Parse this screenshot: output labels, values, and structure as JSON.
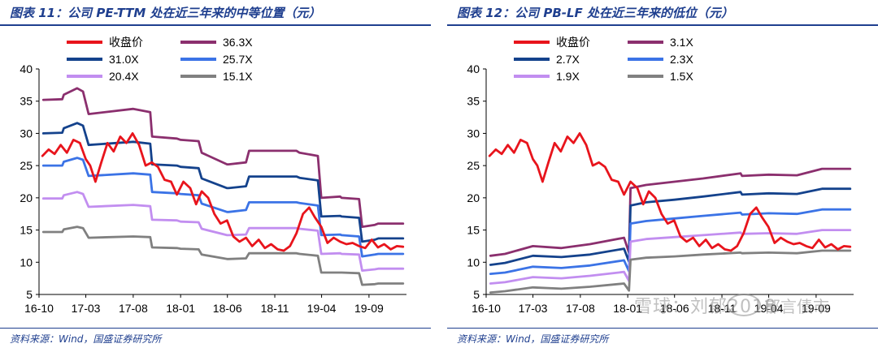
{
  "panels": [
    {
      "title": "图表 11：公司 PE-TTM 处在近三年来的中等位置（元）",
      "source": "资料来源：Wind，国盛证券研究所"
    },
    {
      "title": "图表 12：公司 PB-LF 处在近三年来的低位（元）",
      "source": "资料来源：Wind，国盛证券研究所"
    }
  ],
  "watermark": {
    "line1": "郁言债市",
    "line2": "雪球：刘郁2018"
  },
  "chart_data": [
    {
      "type": "line",
      "ylim": [
        5,
        40
      ],
      "yticks": [
        5,
        10,
        15,
        20,
        25,
        30,
        35,
        40
      ],
      "xlim": [
        "2016-10-01",
        "2019-12-31"
      ],
      "xticks": [
        "16-10",
        "17-03",
        "17-08",
        "18-01",
        "18-06",
        "18-11",
        "19-04",
        "19-09"
      ],
      "grid": false,
      "legend": "top-left",
      "series": [
        {
          "name": "收盘价",
          "color": "#e8141c",
          "width": 2.8,
          "x": [
            "2016-10-12",
            "2016-11-01",
            "2016-11-20",
            "2016-12-10",
            "2016-12-30",
            "2017-01-20",
            "2017-02-10",
            "2017-03-01",
            "2017-03-15",
            "2017-04-01",
            "2017-04-20",
            "2017-05-10",
            "2017-05-30",
            "2017-06-20",
            "2017-07-10",
            "2017-07-30",
            "2017-08-20",
            "2017-09-10",
            "2017-09-30",
            "2017-10-20",
            "2017-11-10",
            "2017-12-01",
            "2017-12-20",
            "2018-01-10",
            "2018-02-01",
            "2018-02-20",
            "2018-03-10",
            "2018-03-31",
            "2018-04-20",
            "2018-05-10",
            "2018-05-31",
            "2018-06-20",
            "2018-07-10",
            "2018-07-31",
            "2018-08-20",
            "2018-09-10",
            "2018-09-30",
            "2018-10-20",
            "2018-11-10",
            "2018-11-30",
            "2018-12-20",
            "2019-01-10",
            "2019-01-31",
            "2019-02-20",
            "2019-03-10",
            "2019-03-31",
            "2019-04-20",
            "2019-05-10",
            "2019-05-31",
            "2019-06-20",
            "2019-07-10",
            "2019-07-31",
            "2019-08-20",
            "2019-09-10",
            "2019-09-30",
            "2019-10-20",
            "2019-11-10",
            "2019-11-30",
            "2019-12-20"
          ],
          "values": [
            26.5,
            27.5,
            26.8,
            28.2,
            27.0,
            29.0,
            28.5,
            26.0,
            25.0,
            22.5,
            25.5,
            28.5,
            27.2,
            29.5,
            28.5,
            30.0,
            28.2,
            25.0,
            25.5,
            24.8,
            22.8,
            22.5,
            20.5,
            22.5,
            21.5,
            19.0,
            21.0,
            20.0,
            17.5,
            16.0,
            16.5,
            14.0,
            13.2,
            13.8,
            12.5,
            13.5,
            12.2,
            12.8,
            12.0,
            11.8,
            12.5,
            14.5,
            17.5,
            18.5,
            17.0,
            15.5,
            13.0,
            13.8,
            13.2,
            12.8,
            13.0,
            12.5,
            12.2,
            13.5,
            12.3,
            12.8,
            12.0,
            12.5,
            12.4
          ]
        },
        {
          "name": "36.3X",
          "color": "#8b2f6e",
          "width": 2.8,
          "x": [
            "2016-10-15",
            "2016-12-15",
            "2016-12-20",
            "2017-02-01",
            "2017-02-20",
            "2017-03-10",
            "2017-08-01",
            "2017-09-25",
            "2017-10-01",
            "2017-12-20",
            "2018-01-01",
            "2018-02-28",
            "2018-03-10",
            "2018-05-31",
            "2018-06-05",
            "2018-07-31",
            "2018-08-10",
            "2019-01-10",
            "2019-01-20",
            "2019-03-20",
            "2019-03-31",
            "2019-05-31",
            "2019-06-05",
            "2019-07-31",
            "2019-08-10",
            "2019-09-20",
            "2019-10-01",
            "2019-12-20"
          ],
          "values": [
            35.2,
            35.3,
            36.0,
            37.0,
            36.5,
            33.0,
            33.8,
            33.3,
            29.5,
            29.2,
            29.0,
            28.8,
            27.0,
            25.2,
            25.2,
            25.5,
            27.3,
            27.3,
            27.0,
            26.5,
            20.0,
            20.2,
            20.0,
            19.8,
            15.5,
            15.8,
            16.0,
            16.0
          ]
        },
        {
          "name": "31.0X",
          "color": "#14428c",
          "width": 2.8,
          "x": [
            "2016-10-15",
            "2016-12-15",
            "2016-12-20",
            "2017-02-01",
            "2017-02-20",
            "2017-03-10",
            "2017-08-01",
            "2017-09-25",
            "2017-10-01",
            "2017-12-20",
            "2018-01-01",
            "2018-02-28",
            "2018-03-10",
            "2018-05-31",
            "2018-06-05",
            "2018-07-31",
            "2018-08-10",
            "2019-01-10",
            "2019-01-20",
            "2019-03-20",
            "2019-03-31",
            "2019-05-31",
            "2019-06-05",
            "2019-07-31",
            "2019-08-10",
            "2019-09-20",
            "2019-10-01",
            "2019-12-20"
          ],
          "values": [
            30.0,
            30.1,
            30.8,
            31.6,
            31.2,
            28.2,
            28.7,
            28.4,
            25.2,
            25.0,
            24.8,
            24.6,
            23.0,
            21.5,
            21.5,
            21.8,
            23.3,
            23.3,
            23.1,
            22.7,
            17.1,
            17.2,
            17.1,
            16.9,
            13.2,
            13.5,
            13.7,
            13.7
          ]
        },
        {
          "name": "25.7X",
          "color": "#3b73e6",
          "width": 2.8,
          "x": [
            "2016-10-15",
            "2016-12-15",
            "2016-12-20",
            "2017-02-01",
            "2017-02-20",
            "2017-03-10",
            "2017-08-01",
            "2017-09-25",
            "2017-10-01",
            "2017-12-20",
            "2018-01-01",
            "2018-02-28",
            "2018-03-10",
            "2018-05-31",
            "2018-06-05",
            "2018-07-31",
            "2018-08-10",
            "2019-01-10",
            "2019-01-20",
            "2019-03-20",
            "2019-03-31",
            "2019-05-31",
            "2019-06-05",
            "2019-07-31",
            "2019-08-10",
            "2019-09-20",
            "2019-10-01",
            "2019-12-20"
          ],
          "values": [
            25.0,
            25.0,
            25.6,
            26.2,
            25.9,
            23.4,
            23.8,
            23.6,
            20.9,
            20.7,
            20.6,
            20.4,
            19.1,
            17.8,
            17.8,
            18.1,
            19.3,
            19.3,
            19.2,
            18.8,
            14.2,
            14.3,
            14.2,
            14.0,
            10.9,
            11.2,
            11.3,
            11.3
          ]
        },
        {
          "name": "20.4X",
          "color": "#c28ef0",
          "width": 2.8,
          "x": [
            "2016-10-15",
            "2016-12-15",
            "2016-12-20",
            "2017-02-01",
            "2017-02-20",
            "2017-03-10",
            "2017-08-01",
            "2017-09-25",
            "2017-10-01",
            "2017-12-20",
            "2018-01-01",
            "2018-02-28",
            "2018-03-10",
            "2018-05-31",
            "2018-06-05",
            "2018-07-31",
            "2018-08-10",
            "2019-01-10",
            "2019-01-20",
            "2019-03-20",
            "2019-03-31",
            "2019-05-31",
            "2019-06-05",
            "2019-07-31",
            "2019-08-10",
            "2019-09-20",
            "2019-10-01",
            "2019-12-20"
          ],
          "values": [
            19.9,
            19.9,
            20.4,
            20.9,
            20.6,
            18.6,
            18.9,
            18.7,
            16.6,
            16.5,
            16.3,
            16.2,
            15.2,
            14.2,
            14.2,
            14.3,
            15.3,
            15.3,
            15.2,
            14.9,
            11.3,
            11.4,
            11.3,
            11.2,
            8.7,
            8.9,
            9.0,
            9.0
          ]
        },
        {
          "name": "15.1X",
          "color": "#808080",
          "width": 2.8,
          "x": [
            "2016-10-15",
            "2016-12-15",
            "2016-12-20",
            "2017-02-01",
            "2017-02-20",
            "2017-03-10",
            "2017-08-01",
            "2017-09-25",
            "2017-10-01",
            "2017-12-20",
            "2018-01-01",
            "2018-02-28",
            "2018-03-10",
            "2018-05-31",
            "2018-06-05",
            "2018-07-31",
            "2018-08-10",
            "2019-01-10",
            "2019-01-20",
            "2019-03-20",
            "2019-03-31",
            "2019-05-31",
            "2019-06-05",
            "2019-07-31",
            "2019-08-10",
            "2019-09-20",
            "2019-10-01",
            "2019-12-20"
          ],
          "values": [
            14.7,
            14.7,
            15.1,
            15.5,
            15.3,
            13.8,
            14.0,
            13.9,
            12.3,
            12.2,
            12.1,
            12.0,
            11.2,
            10.5,
            10.5,
            10.6,
            11.4,
            11.4,
            11.3,
            11.0,
            8.4,
            8.4,
            8.4,
            8.3,
            6.5,
            6.6,
            6.7,
            6.7
          ]
        }
      ]
    },
    {
      "type": "line",
      "ylim": [
        5,
        40
      ],
      "yticks": [
        5,
        10,
        15,
        20,
        25,
        30,
        35,
        40
      ],
      "xlim": [
        "2016-10-01",
        "2019-12-31"
      ],
      "xticks": [
        "16-10",
        "17-03",
        "17-08",
        "18-01",
        "18-06",
        "18-11",
        "19-04",
        "19-09"
      ],
      "grid": false,
      "legend": "top-left",
      "series": [
        {
          "name": "收盘价",
          "color": "#e8141c",
          "width": 2.8,
          "x": [
            "2016-10-12",
            "2016-11-01",
            "2016-11-20",
            "2016-12-10",
            "2016-12-30",
            "2017-01-20",
            "2017-02-10",
            "2017-03-01",
            "2017-03-15",
            "2017-04-01",
            "2017-04-20",
            "2017-05-10",
            "2017-05-30",
            "2017-06-20",
            "2017-07-10",
            "2017-07-30",
            "2017-08-20",
            "2017-09-10",
            "2017-09-30",
            "2017-10-20",
            "2017-11-10",
            "2017-12-01",
            "2017-12-20",
            "2018-01-10",
            "2018-02-01",
            "2018-02-20",
            "2018-03-10",
            "2018-03-31",
            "2018-04-20",
            "2018-05-10",
            "2018-05-31",
            "2018-06-20",
            "2018-07-10",
            "2018-07-31",
            "2018-08-20",
            "2018-09-10",
            "2018-09-30",
            "2018-10-20",
            "2018-11-10",
            "2018-11-30",
            "2018-12-20",
            "2019-01-10",
            "2019-01-31",
            "2019-02-20",
            "2019-03-10",
            "2019-03-31",
            "2019-04-20",
            "2019-05-10",
            "2019-05-31",
            "2019-06-20",
            "2019-07-10",
            "2019-07-31",
            "2019-08-20",
            "2019-09-10",
            "2019-09-30",
            "2019-10-20",
            "2019-11-10",
            "2019-11-30",
            "2019-12-20"
          ],
          "values": [
            26.5,
            27.5,
            26.8,
            28.2,
            27.0,
            29.0,
            28.5,
            26.0,
            25.0,
            22.5,
            25.5,
            28.5,
            27.2,
            29.5,
            28.5,
            30.0,
            28.2,
            25.0,
            25.5,
            24.8,
            22.8,
            22.5,
            20.5,
            22.5,
            21.5,
            19.0,
            21.0,
            20.0,
            17.5,
            16.0,
            16.5,
            14.0,
            13.2,
            13.8,
            12.5,
            13.5,
            12.2,
            12.8,
            12.0,
            11.8,
            12.5,
            14.5,
            17.5,
            18.5,
            17.0,
            15.5,
            13.0,
            13.8,
            13.2,
            12.8,
            13.0,
            12.5,
            12.2,
            13.5,
            12.3,
            12.8,
            12.0,
            12.5,
            12.4
          ]
        },
        {
          "name": "3.1X",
          "color": "#8b2f6e",
          "width": 2.8,
          "x": [
            "2016-10-15",
            "2016-12-01",
            "2017-03-01",
            "2017-06-01",
            "2017-09-01",
            "2017-12-20",
            "2018-01-05",
            "2018-01-10",
            "2018-03-01",
            "2018-06-01",
            "2018-09-01",
            "2018-12-31",
            "2019-01-05",
            "2019-04-01",
            "2019-07-01",
            "2019-09-20",
            "2019-12-20"
          ],
          "values": [
            11.0,
            11.3,
            12.5,
            12.2,
            12.8,
            13.8,
            11.5,
            21.5,
            22.0,
            22.5,
            23.0,
            23.8,
            23.4,
            23.6,
            23.5,
            24.5,
            24.5
          ]
        },
        {
          "name": "2.7X",
          "color": "#14428c",
          "width": 2.8,
          "x": [
            "2016-10-15",
            "2016-12-01",
            "2017-03-01",
            "2017-06-01",
            "2017-09-01",
            "2017-12-20",
            "2018-01-05",
            "2018-01-10",
            "2018-03-01",
            "2018-06-01",
            "2018-09-01",
            "2018-12-31",
            "2019-01-05",
            "2019-04-01",
            "2019-07-01",
            "2019-09-20",
            "2019-12-20"
          ],
          "values": [
            9.6,
            9.9,
            11.0,
            10.8,
            11.2,
            12.1,
            10.1,
            18.8,
            19.3,
            19.7,
            20.2,
            20.9,
            20.5,
            20.7,
            20.6,
            21.4,
            21.4
          ]
        },
        {
          "name": "2.3X",
          "color": "#3b73e6",
          "width": 2.8,
          "x": [
            "2016-10-15",
            "2016-12-01",
            "2017-03-01",
            "2017-06-01",
            "2017-09-01",
            "2017-12-20",
            "2018-01-05",
            "2018-01-10",
            "2018-03-01",
            "2018-06-01",
            "2018-09-01",
            "2018-12-31",
            "2019-01-05",
            "2019-04-01",
            "2019-07-01",
            "2019-09-20",
            "2019-12-20"
          ],
          "values": [
            8.2,
            8.4,
            9.3,
            9.1,
            9.5,
            10.3,
            8.6,
            16.0,
            16.4,
            16.8,
            17.2,
            17.7,
            17.4,
            17.6,
            17.5,
            18.2,
            18.2
          ]
        },
        {
          "name": "1.9X",
          "color": "#c28ef0",
          "width": 2.8,
          "x": [
            "2016-10-15",
            "2016-12-01",
            "2017-03-01",
            "2017-06-01",
            "2017-09-01",
            "2017-12-20",
            "2018-01-05",
            "2018-01-10",
            "2018-03-01",
            "2018-06-01",
            "2018-09-01",
            "2018-12-31",
            "2019-01-05",
            "2019-04-01",
            "2019-07-01",
            "2019-09-20",
            "2019-12-20"
          ],
          "values": [
            6.7,
            6.9,
            7.7,
            7.5,
            7.9,
            8.5,
            7.1,
            13.2,
            13.6,
            13.9,
            14.2,
            14.6,
            14.4,
            14.5,
            14.4,
            15.0,
            15.0
          ]
        },
        {
          "name": "1.5X",
          "color": "#808080",
          "width": 2.8,
          "x": [
            "2016-10-15",
            "2016-12-01",
            "2017-03-01",
            "2017-06-01",
            "2017-09-01",
            "2017-12-20",
            "2018-01-05",
            "2018-01-10",
            "2018-03-01",
            "2018-06-01",
            "2018-09-01",
            "2018-12-31",
            "2019-01-05",
            "2019-04-01",
            "2019-07-01",
            "2019-09-20",
            "2019-12-20"
          ],
          "values": [
            5.3,
            5.5,
            6.1,
            5.9,
            6.2,
            6.7,
            5.6,
            10.4,
            10.7,
            10.9,
            11.2,
            11.5,
            11.4,
            11.5,
            11.4,
            11.8,
            11.8
          ]
        }
      ]
    }
  ]
}
